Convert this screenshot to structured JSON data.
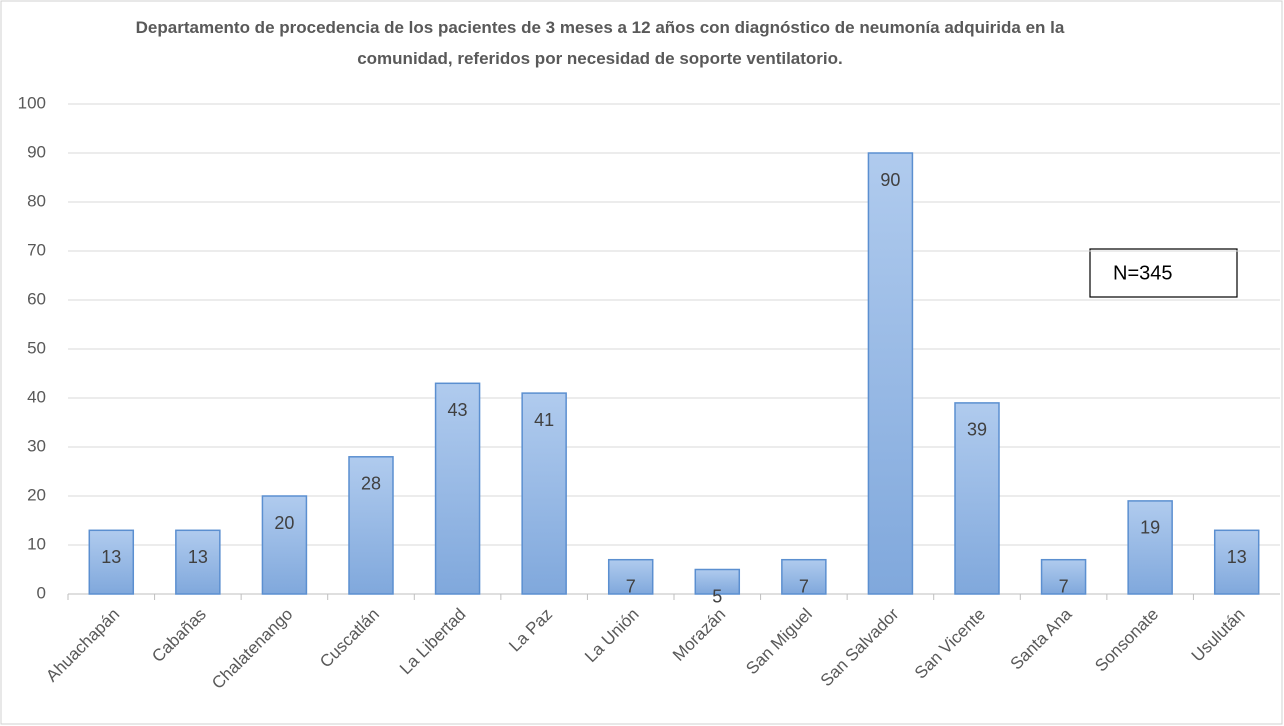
{
  "chart_data": {
    "type": "bar",
    "title": "Departamento de procedencia de los pacientes de 3 meses a 12 años con diagnóstico de neumonía adquirida en la comunidad, referidos por necesidad de soporte ventilatorio.",
    "categories": [
      "Ahuachapán",
      "Cabañas",
      "Chalatenango",
      "Cuscatlán",
      "La Libertad",
      "La Paz",
      "La Unión",
      "Morazán",
      "San Miguel",
      "San Salvador",
      "San Vicente",
      "Santa Ana",
      "Sonsonate",
      "Usulután"
    ],
    "values": [
      13,
      13,
      20,
      28,
      43,
      41,
      7,
      5,
      7,
      90,
      39,
      7,
      19,
      13
    ],
    "color": "#9dbde8",
    "ylim": [
      0,
      100
    ],
    "yticks": [
      0,
      10,
      20,
      30,
      40,
      50,
      60,
      70,
      80,
      90,
      100
    ],
    "grid": true,
    "annotation": "N=345"
  }
}
